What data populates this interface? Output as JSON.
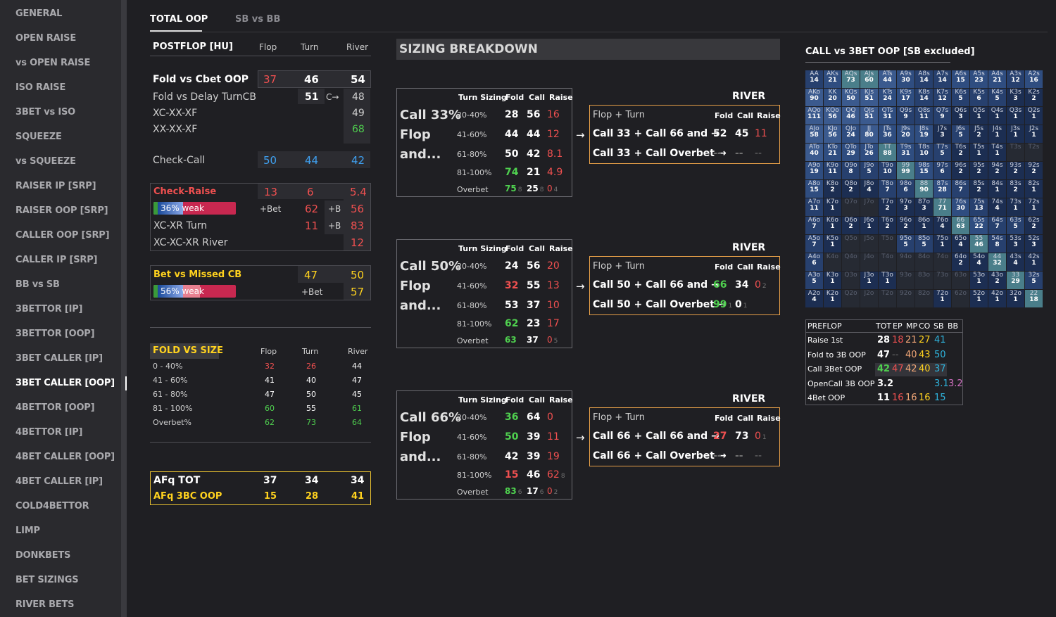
{
  "sidebar": {
    "items": [
      {
        "label": "GENERAL",
        "active": false
      },
      {
        "label": "OPEN RAISE",
        "active": false
      },
      {
        "label": "vs OPEN RAISE",
        "active": false
      },
      {
        "label": "ISO RAISE",
        "active": false
      },
      {
        "label": "3BET vs ISO",
        "active": false
      },
      {
        "label": "SQUEEZE",
        "active": false
      },
      {
        "label": "vs SQUEEZE",
        "active": false
      },
      {
        "label": "RAISER IP [SRP]",
        "active": false
      },
      {
        "label": "RAISER OOP [SRP]",
        "active": false
      },
      {
        "label": "CALLER OOP [SRP]",
        "active": false
      },
      {
        "label": "CALLER IP [SRP]",
        "active": false
      },
      {
        "label": "BB vs SB",
        "active": false
      },
      {
        "label": "3BETTOR [IP]",
        "active": false
      },
      {
        "label": "3BETTOR [OOP]",
        "active": false
      },
      {
        "label": "3BET CALLER [IP]",
        "active": false
      },
      {
        "label": "3BET CALLER [OOP]",
        "active": true
      },
      {
        "label": "4BETTOR [OOP]",
        "active": false
      },
      {
        "label": "4BETTOR [IP]",
        "active": false
      },
      {
        "label": "4BET CALLER [OOP]",
        "active": false
      },
      {
        "label": "4BET CALLER [IP]",
        "active": false
      },
      {
        "label": "COLD4BETTOR",
        "active": false
      },
      {
        "label": "LIMP",
        "active": false
      },
      {
        "label": "DONKBETS",
        "active": false
      },
      {
        "label": "BET SIZINGS",
        "active": false
      },
      {
        "label": "RIVER BETS",
        "active": false
      }
    ]
  },
  "tabs": [
    {
      "label": "TOTAL OOP",
      "active": true
    },
    {
      "label": "SB vs BB",
      "active": false
    }
  ],
  "postflop": {
    "title": "POSTFLOP [HU]",
    "col_flop": "Flop",
    "col_turn": "Turn",
    "col_river": "River",
    "fold_cbet": {
      "label": "Fold vs Cbet OOP",
      "flop": "37",
      "turn": "46",
      "river": "54"
    },
    "fold_delay": {
      "label": "Fold vs Delay TurnCB",
      "turn": "51",
      "mid": "C→",
      "river": "48"
    },
    "xc_xx_xf": {
      "label": "XC-XX-XF",
      "river": "49"
    },
    "xx_xx_xf": {
      "label": "XX-XX-XF",
      "river": "68"
    },
    "check_call": {
      "label": "Check-Call",
      "flop": "50",
      "turn": "44",
      "river": "42"
    },
    "check_raise": {
      "label": "Check-Raise",
      "flop": "13",
      "turn": "6",
      "river": "5.4",
      "bar_text": "36% weak",
      "bar_weak": 0.36,
      "flop_bet": "+Bet",
      "turn_val": "62",
      "turn_tag": "+B",
      "river_val": "56"
    },
    "xc_xr_turn": {
      "label": "XC-XR Turn",
      "turn": "11",
      "tag": "+B",
      "river": "83"
    },
    "xc_xc_xr_river": {
      "label": "XC-XC-XR River",
      "river": "12"
    },
    "bet_missed": {
      "label": "Bet vs Missed CB",
      "turn": "47",
      "river": "50",
      "bar_text": "56% weak",
      "bar_weak": 0.56,
      "bet_label": "+Bet",
      "river2": "57"
    }
  },
  "fold_vs_size": {
    "title": "FOLD VS SIZE",
    "col_flop": "Flop",
    "col_turn": "Turn",
    "col_river": "River",
    "rows": [
      {
        "label": "0 - 40%",
        "flop": "32",
        "turn": "26",
        "river": "44",
        "fc": "r",
        "tc": "r",
        "rc": "w"
      },
      {
        "label": "41 - 60%",
        "flop": "41",
        "turn": "40",
        "river": "47",
        "fc": "w",
        "tc": "w",
        "rc": "w"
      },
      {
        "label": "61 - 80%",
        "flop": "47",
        "turn": "50",
        "river": "45",
        "fc": "w",
        "tc": "w",
        "rc": "w"
      },
      {
        "label": "81 - 100%",
        "flop": "60",
        "turn": "55",
        "river": "61",
        "fc": "gr",
        "tc": "w",
        "rc": "gr"
      },
      {
        "label": "Overbet%",
        "flop": "62",
        "turn": "73",
        "river": "64",
        "fc": "gr",
        "tc": "gr",
        "rc": "gr"
      }
    ]
  },
  "afq": {
    "tot": {
      "label": "AFq TOT",
      "flop": "37",
      "turn": "34",
      "river": "34"
    },
    "oop": {
      "label": "AFq 3BC OOP",
      "flop": "15",
      "turn": "28",
      "river": "41"
    }
  },
  "sizing": {
    "title": "SIZING BREAKDOWN",
    "hdr": {
      "turn_sizing": "Turn Sizing",
      "fold": "Fold",
      "call": "Call",
      "raise": "Raise"
    },
    "river_label": "RIVER",
    "flop_turn": "Flop + Turn",
    "rfold": "Fold",
    "rcall": "Call",
    "rraise": "Raise",
    "blocks": [
      {
        "line1": "Call 33%",
        "line2": "Flop",
        "line3": "and...",
        "rows": [
          {
            "size": "20-40%",
            "fold": "28",
            "call": "56",
            "raise": "16",
            "fc": "w",
            "cc": "w",
            "rc": "r",
            "fs": "",
            "cs": "",
            "rs": ""
          },
          {
            "size": "41-60%",
            "fold": "44",
            "call": "44",
            "raise": "12",
            "fc": "w",
            "cc": "w",
            "rc": "r",
            "fs": "",
            "cs": "",
            "rs": ""
          },
          {
            "size": "61-80%",
            "fold": "50",
            "call": "42",
            "raise": "8.1",
            "fc": "w",
            "cc": "w",
            "rc": "r",
            "fs": "",
            "cs": "",
            "rs": ""
          },
          {
            "size": "81-100%",
            "fold": "74",
            "call": "21",
            "raise": "4.9",
            "fc": "gr",
            "cc": "w",
            "rc": "r",
            "fs": "",
            "cs": "",
            "rs": ""
          },
          {
            "size": "Overbet",
            "fold": "75",
            "call": "25",
            "raise": "0",
            "fc": "gr",
            "cc": "w",
            "rc": "r",
            "fs": "8",
            "cs": "8",
            "rs": "4"
          }
        ],
        "river": [
          {
            "label": "Call 33 + Call 66 and",
            "fold": "52",
            "call": "45",
            "raise": "11",
            "fc": "w",
            "cc": "w",
            "rc": "r",
            "fs": "",
            "cs": "",
            "rs": ""
          },
          {
            "label": "Call 33 + Call Overbet",
            "fold": "--",
            "call": "--",
            "raise": "--",
            "fc": "dim",
            "cc": "dim",
            "rc": "dim",
            "fs": "",
            "cs": "",
            "rs": ""
          }
        ]
      },
      {
        "line1": "Call 50%",
        "line2": "Flop",
        "line3": "and...",
        "rows": [
          {
            "size": "20-40%",
            "fold": "24",
            "call": "56",
            "raise": "20",
            "fc": "w",
            "cc": "w",
            "rc": "r",
            "fs": "",
            "cs": "",
            "rs": ""
          },
          {
            "size": "41-60%",
            "fold": "32",
            "call": "55",
            "raise": "13",
            "fc": "r",
            "cc": "w",
            "rc": "r",
            "fs": "",
            "cs": "",
            "rs": ""
          },
          {
            "size": "61-80%",
            "fold": "53",
            "call": "37",
            "raise": "10",
            "fc": "w",
            "cc": "w",
            "rc": "r",
            "fs": "",
            "cs": "",
            "rs": ""
          },
          {
            "size": "81-100%",
            "fold": "62",
            "call": "23",
            "raise": "17",
            "fc": "gr",
            "cc": "w",
            "rc": "r",
            "fs": "",
            "cs": "",
            "rs": ""
          },
          {
            "size": "Overbet",
            "fold": "63",
            "call": "37",
            "raise": "0",
            "fc": "gr",
            "cc": "w",
            "rc": "r",
            "fs": "",
            "cs": "",
            "rs": "5"
          }
        ],
        "river": [
          {
            "label": "Call 50 + Call 66 and",
            "fold": "66",
            "call": "34",
            "raise": "0",
            "fc": "gr",
            "cc": "w",
            "rc": "r",
            "fs": "",
            "cs": "",
            "rs": "2"
          },
          {
            "label": "Call 50 + Call Overbet",
            "fold": "99",
            "call": "0",
            "raise": "",
            "fc": "gr",
            "cc": "w",
            "rc": "r",
            "fs": "1",
            "cs": "1",
            "rs": ""
          }
        ]
      },
      {
        "line1": "Call 66%",
        "line2": "Flop",
        "line3": "and...",
        "rows": [
          {
            "size": "20-40%",
            "fold": "36",
            "call": "64",
            "raise": "0",
            "fc": "gr",
            "cc": "w",
            "rc": "r",
            "fs": "",
            "cs": "",
            "rs": ""
          },
          {
            "size": "41-60%",
            "fold": "50",
            "call": "39",
            "raise": "11",
            "fc": "gr",
            "cc": "w",
            "rc": "r",
            "fs": "",
            "cs": "",
            "rs": ""
          },
          {
            "size": "61-80%",
            "fold": "42",
            "call": "39",
            "raise": "19",
            "fc": "w",
            "cc": "w",
            "rc": "r",
            "fs": "",
            "cs": "",
            "rs": ""
          },
          {
            "size": "81-100%",
            "fold": "15",
            "call": "46",
            "raise": "62",
            "fc": "r",
            "cc": "w",
            "rc": "r",
            "fs": "",
            "cs": "",
            "rs": "8"
          },
          {
            "size": "Overbet",
            "fold": "83",
            "call": "17",
            "raise": "0",
            "fc": "gr",
            "cc": "w",
            "rc": "r",
            "fs": "6",
            "cs": "6",
            "rs": "2"
          }
        ],
        "river": [
          {
            "label": "Call 66 + Call 66 and",
            "fold": "27",
            "call": "73",
            "raise": "0",
            "fc": "r",
            "cc": "w",
            "rc": "r",
            "fs": "",
            "cs": "",
            "rs": "1"
          },
          {
            "label": "Call 66 + Call Overbet",
            "fold": "--",
            "call": "--",
            "raise": "--",
            "fc": "dim",
            "cc": "dim",
            "rc": "dim",
            "fs": "",
            "cs": "",
            "rs": ""
          }
        ]
      }
    ]
  },
  "matrix": {
    "title": "CALL vs 3BET OOP [SB excluded]",
    "ranks": [
      "A",
      "K",
      "Q",
      "J",
      "T",
      "9",
      "8",
      "7",
      "6",
      "5",
      "4",
      "3",
      "2"
    ],
    "values": [
      [
        "14",
        "21",
        "73",
        "60",
        "44",
        "30",
        "14",
        "14",
        "15",
        "23",
        "21",
        "12",
        "16"
      ],
      [
        "90",
        "20",
        "50",
        "51",
        "24",
        "17",
        "14",
        "12",
        "5",
        "6",
        "5",
        "3",
        "2"
      ],
      [
        "111",
        "56",
        "46",
        "51",
        "31",
        "9",
        "11",
        "9",
        "3",
        "1",
        "1",
        "1",
        "1"
      ],
      [
        "58",
        "56",
        "24",
        "80",
        "36",
        "20",
        "19",
        "3",
        "5",
        "2",
        "1",
        "1",
        "1"
      ],
      [
        "40",
        "21",
        "29",
        "26",
        "88",
        "31",
        "10",
        "5",
        "2",
        "1",
        "1",
        "",
        ""
      ],
      [
        "19",
        "11",
        "8",
        "5",
        "10",
        "99",
        "15",
        "6",
        "2",
        "2",
        "2",
        "2",
        "2"
      ],
      [
        "15",
        "2",
        "2",
        "4",
        "7",
        "6",
        "90",
        "28",
        "7",
        "2",
        "1",
        "2",
        "1"
      ],
      [
        "11",
        "1",
        "",
        "",
        "2",
        "3",
        "3",
        "71",
        "30",
        "13",
        "4",
        "1",
        "1"
      ],
      [
        "7",
        "1",
        "2",
        "1",
        "2",
        "2",
        "1",
        "4",
        "63",
        "22",
        "7",
        "5",
        "2"
      ],
      [
        "7",
        "1",
        "",
        "",
        "",
        "5",
        "5",
        "1",
        "4",
        "46",
        "8",
        "3",
        "3"
      ],
      [
        "6",
        "",
        "",
        "",
        "",
        "",
        "",
        "",
        "2",
        "4",
        "32",
        "4",
        "1"
      ],
      [
        "5",
        "1",
        "",
        "1",
        "1",
        "",
        "",
        "",
        "",
        "1",
        "2",
        "29",
        "5"
      ],
      [
        "4",
        "1",
        "",
        "",
        "",
        "",
        "",
        "1",
        "",
        "1",
        "1",
        "1",
        "18"
      ]
    ]
  },
  "preflop": {
    "title": "PREFLOP",
    "cols": [
      "TOT",
      "EP",
      "MP",
      "CO",
      "SB",
      "BB"
    ],
    "rows": [
      {
        "label": "Raise 1st",
        "cells": [
          {
            "v": "28",
            "c": "w"
          },
          {
            "v": "18",
            "c": "r"
          },
          {
            "v": "21",
            "c": "o"
          },
          {
            "v": "27",
            "c": "y"
          },
          {
            "v": "41",
            "c": "cy"
          },
          {
            "v": "",
            "c": "w"
          }
        ]
      },
      {
        "label": "Fold to 3B OOP",
        "cells": [
          {
            "v": "47",
            "c": "w"
          },
          {
            "v": "--",
            "c": "dim"
          },
          {
            "v": "40",
            "c": "o"
          },
          {
            "v": "43",
            "c": "y"
          },
          {
            "v": "50",
            "c": "cy"
          },
          {
            "v": "",
            "c": "w"
          }
        ]
      },
      {
        "label": "Call 3Bet OOP",
        "cells": [
          {
            "v": "42",
            "c": "gr"
          },
          {
            "v": "47",
            "c": "r"
          },
          {
            "v": "42",
            "c": "o"
          },
          {
            "v": "40",
            "c": "y"
          },
          {
            "v": "37",
            "c": "cy"
          },
          {
            "v": "",
            "c": "w"
          }
        ]
      },
      {
        "label": "OpenCall 3B OOP",
        "cells": [
          {
            "v": "3.2",
            "c": "w"
          },
          {
            "v": "",
            "c": "w"
          },
          {
            "v": "",
            "c": "w"
          },
          {
            "v": "",
            "c": "w"
          },
          {
            "v": "3.1",
            "c": "cy"
          },
          {
            "v": "3.2",
            "c": "pk"
          }
        ]
      },
      {
        "label": "4Bet OOP",
        "cells": [
          {
            "v": "11",
            "c": "w"
          },
          {
            "v": "16",
            "c": "r"
          },
          {
            "v": "16",
            "c": "o"
          },
          {
            "v": "16",
            "c": "y"
          },
          {
            "v": "15",
            "c": "cy"
          },
          {
            "v": "",
            "c": "w"
          }
        ]
      }
    ]
  }
}
